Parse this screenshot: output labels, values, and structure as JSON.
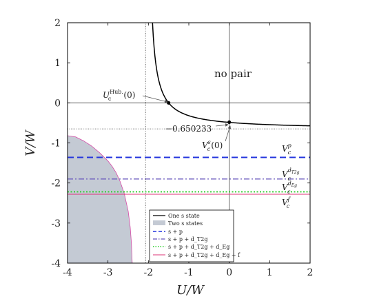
{
  "chart_data": {
    "type": "line",
    "xlabel": "U/W",
    "ylabel": "V/W",
    "xlim": [
      -4,
      2
    ],
    "ylim": [
      -4,
      2
    ],
    "xticks": [
      "-4",
      "-3",
      "-2",
      "-1",
      "0",
      "1",
      "2"
    ],
    "yticks": [
      "2",
      "1",
      "0",
      "-1",
      "-2",
      "-3",
      "-4"
    ],
    "grid": false,
    "legend_position": "bottom-right",
    "series": [
      {
        "name": "One s state",
        "color": "#000000",
        "style": "solid",
        "x": [
          -1.9,
          -1.8,
          -1.7,
          -1.6,
          -1.5,
          -1.4,
          -1.3,
          -1.2,
          -1.1,
          -1.0,
          -0.8,
          -0.6,
          -0.4,
          -0.2,
          0.0,
          0.25,
          0.5,
          0.75,
          1.0,
          1.25,
          1.5,
          1.75,
          2.0
        ],
        "y": [
          2.0,
          1.05,
          0.62,
          0.28,
          0.0,
          -0.08,
          -0.17,
          -0.24,
          -0.29,
          -0.33,
          -0.4,
          -0.45,
          -0.5,
          -0.54,
          -0.65,
          -0.55,
          -0.565,
          -0.578,
          -0.588,
          -0.596,
          -0.602,
          -0.607,
          -0.611
        ]
      },
      {
        "name": "Two s states",
        "color": "#c4cad4",
        "style": "filled-region",
        "x": [
          -4.0,
          -3.8,
          -3.6,
          -3.4,
          -3.2,
          -3.0,
          -2.9,
          -2.8,
          -2.7,
          -2.6,
          -2.5,
          -2.45,
          -2.42,
          -2.4
        ],
        "y": [
          -0.82,
          -0.85,
          -0.95,
          -1.08,
          -1.25,
          -1.45,
          -1.58,
          -1.74,
          -1.96,
          -2.25,
          -2.7,
          -3.1,
          -3.5,
          -4.0
        ]
      },
      {
        "name": "s + p",
        "color": "#2233dd",
        "style": "dashed",
        "y_const": -1.36
      },
      {
        "name": "s + p + d_{T2g}",
        "color": "#6655bb",
        "style": "dashdot",
        "y_const": -1.9
      },
      {
        "name": "s + p + d_{T2g} + d_{Eg}",
        "color": "#22cc22",
        "style": "dotted",
        "y_const": -2.22
      },
      {
        "name": "s + p + d_{T2g} + d_{Eg} + f",
        "color": "#dd3377",
        "style": "solid-thin",
        "y_const": -2.28
      }
    ],
    "reference_lines": {
      "x": [
        0,
        -2.07
      ],
      "y": [
        0,
        -0.650233
      ]
    },
    "markers": [
      {
        "x": -1.5,
        "y": 0.0
      },
      {
        "x": 0.0,
        "y": -0.4826
      }
    ]
  },
  "annotations": {
    "no_pair": "no pair",
    "uc_hub": "U",
    "uc_hub_sup": "Hub.",
    "uc_hub_tail": "(0)",
    "uc_hub_sub": "c",
    "vcs_base": "V",
    "vcs_sup": "s",
    "vcs_sub": "c",
    "vcs_tail": "(0)",
    "value_label": "−0.650233",
    "vcp_base": "V",
    "vcp_sup": "p",
    "vcp_sub": "c",
    "vcd_base": "V",
    "vcd_sup": "d",
    "vcd_sup_sub": "T2g",
    "vcd_sub": "c",
    "vcde_base": "V",
    "vcde_sup": "d",
    "vcde_sup_sub": "Eg",
    "vcde_sub": "c",
    "vcf_base": "V",
    "vcf_sup": "f",
    "vcf_sub": "c"
  },
  "legend": {
    "items": [
      "One s state",
      "Two s states",
      "s + p",
      "s + p + d_T2g",
      "s + p + d_T2g + d_Eg",
      "s + p + d_T2g + d_Eg + f"
    ]
  }
}
